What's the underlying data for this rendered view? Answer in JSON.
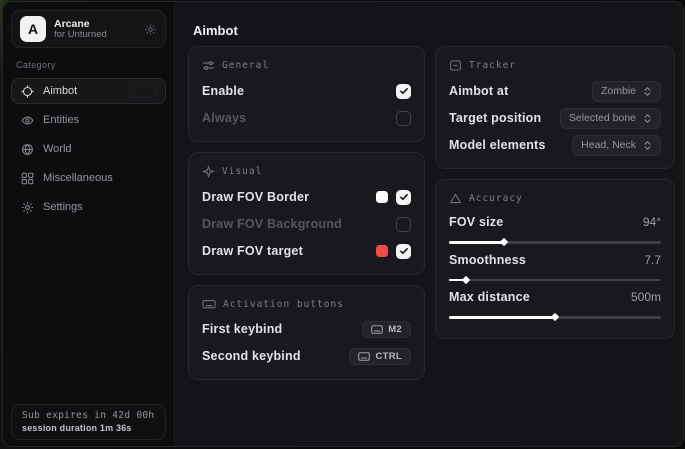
{
  "app": {
    "name": "Arcane",
    "subtitle": "for Unturned",
    "logo_letter": "A"
  },
  "sidebar": {
    "category_label": "Category",
    "items": [
      {
        "label": "Aimbot"
      },
      {
        "label": "Entities"
      },
      {
        "label": "World"
      },
      {
        "label": "Miscellaneous"
      },
      {
        "label": "Settings"
      }
    ],
    "footer": {
      "line1": "Sub expires in 42d 00h",
      "line2": "session duration 1m 36s"
    }
  },
  "page": {
    "title": "Aimbot"
  },
  "cards": {
    "general": {
      "title": "General",
      "rows": [
        {
          "label": "Enable",
          "checked": true
        },
        {
          "label": "Always",
          "checked": false
        }
      ]
    },
    "visual": {
      "title": "Visual",
      "rows": [
        {
          "label": "Draw FOV Border",
          "swatch": "#ffffff",
          "checked": true
        },
        {
          "label": "Draw FOV Background",
          "checked": false
        },
        {
          "label": "Draw FOV target",
          "swatch": "#ef4b4b",
          "checked": true
        }
      ]
    },
    "activation": {
      "title": "Activation buttons",
      "rows": [
        {
          "label": "First keybind",
          "key": "M2"
        },
        {
          "label": "Second keybind",
          "key": "CTRL"
        }
      ]
    },
    "tracker": {
      "title": "Tracker",
      "rows": [
        {
          "label": "Aimbot at",
          "value": "Zombie"
        },
        {
          "label": "Target position",
          "value": "Selected bone"
        },
        {
          "label": "Model elements",
          "value": "Head, Neck"
        }
      ]
    },
    "accuracy": {
      "title": "Accuracy",
      "rows": [
        {
          "label": "FOV size",
          "value": "94°",
          "percent": 26
        },
        {
          "label": "Smoothness",
          "value": "7.7",
          "percent": 8
        },
        {
          "label": "Max distance",
          "value": "500m",
          "percent": 50
        }
      ]
    }
  }
}
